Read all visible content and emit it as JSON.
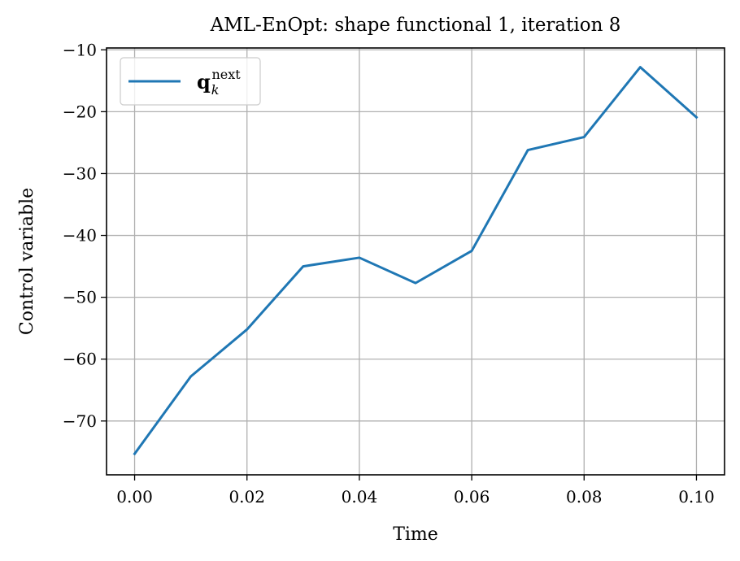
{
  "chart_data": {
    "type": "line",
    "title": "AML-EnOpt: shape functional 1, iteration 8",
    "xlabel": "Time",
    "ylabel": "Control variable",
    "xlim": [
      -0.005,
      0.105
    ],
    "ylim": [
      -78.7,
      -9.7
    ],
    "xticks": [
      0.0,
      0.02,
      0.04,
      0.06,
      0.08,
      0.1
    ],
    "xtick_labels": [
      "0.00",
      "0.02",
      "0.04",
      "0.06",
      "0.08",
      "0.10"
    ],
    "yticks": [
      -70,
      -60,
      -50,
      -40,
      -30,
      -20,
      -10
    ],
    "ytick_labels": [
      "−70",
      "−60",
      "−50",
      "−40",
      "−30",
      "−20",
      "−10"
    ],
    "grid": true,
    "legend_position": "top-left",
    "series": [
      {
        "name": "q_k^next",
        "legend_main": "q",
        "legend_sub": "k",
        "legend_sup": "next",
        "color": "#1f77b4",
        "x": [
          0.0,
          0.01,
          0.02,
          0.03,
          0.04,
          0.05,
          0.06,
          0.07,
          0.08,
          0.09,
          0.1
        ],
        "y": [
          -75.3,
          -62.8,
          -55.2,
          -45.0,
          -43.6,
          -47.7,
          -42.5,
          -26.2,
          -24.1,
          -12.8,
          -20.9
        ]
      }
    ]
  }
}
